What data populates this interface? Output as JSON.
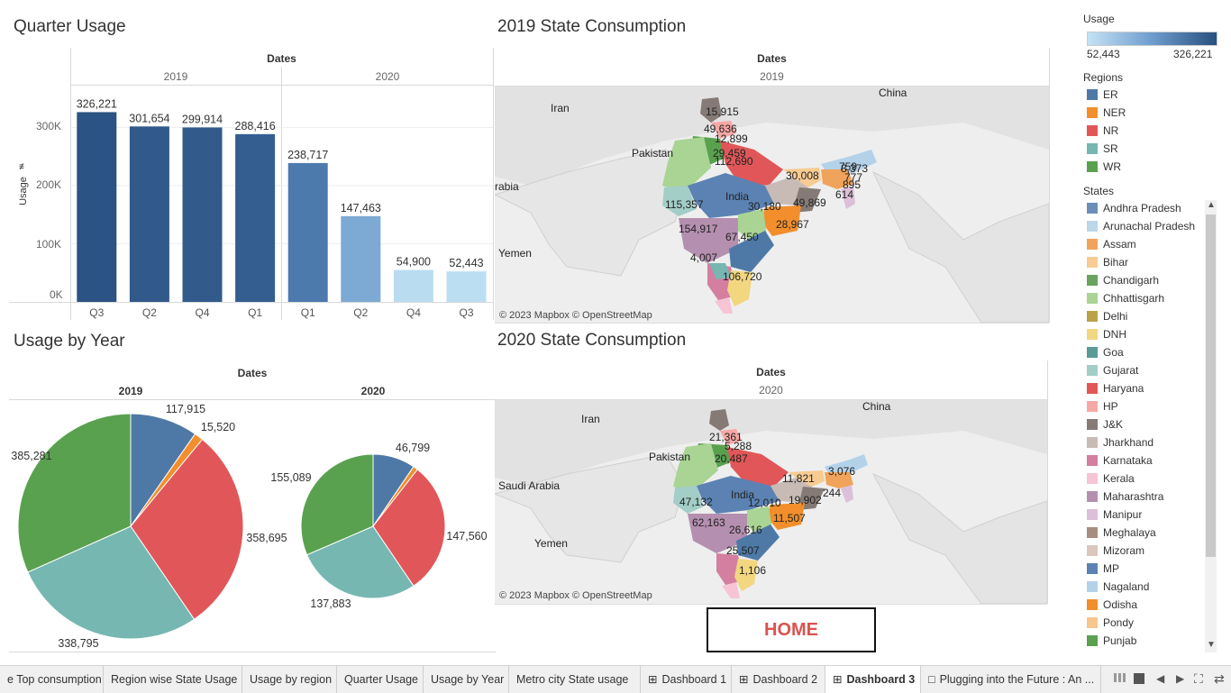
{
  "quarter_usage": {
    "title": "Quarter Usage",
    "header": "Dates",
    "years": [
      "2019",
      "2020"
    ],
    "ylabel": "Usage",
    "yticks": [
      "300K",
      "200K",
      "100K",
      "0K"
    ],
    "chart_data": {
      "type": "bar",
      "categories": [
        "2019 Q3",
        "2019 Q2",
        "2019 Q4",
        "2019 Q1",
        "2020 Q1",
        "2020 Q2",
        "2020 Q4",
        "2020 Q3"
      ],
      "quarter_labels": [
        "Q3",
        "Q2",
        "Q4",
        "Q1",
        "Q1",
        "Q2",
        "Q4",
        "Q3"
      ],
      "values": [
        326221,
        301654,
        299914,
        288416,
        238717,
        147463,
        54900,
        52443
      ],
      "value_labels": [
        "326,221",
        "301,654",
        "299,914",
        "288,416",
        "238,717",
        "147,463",
        "54,900",
        "52,443"
      ],
      "ylim": [
        0,
        330000
      ],
      "colors": [
        "#2b5383",
        "#31598a",
        "#325b8c",
        "#345e90",
        "#4d7aad",
        "#7daad5",
        "#b9dcf1",
        "#bcdef2"
      ]
    }
  },
  "usage_by_year": {
    "title": "Usage by Year",
    "header": "Dates",
    "chart_data": [
      {
        "type": "pie",
        "year": "2019",
        "slices": [
          {
            "region": "ER",
            "value": 117915,
            "label": "117,915",
            "color": "#4e79a7"
          },
          {
            "region": "NER",
            "value": 15520,
            "label": "15,520",
            "color": "#f28e2b"
          },
          {
            "region": "NR",
            "value": 358695,
            "label": "358,695",
            "color": "#e15759"
          },
          {
            "region": "SR",
            "value": 338795,
            "label": "338,795",
            "color": "#76b7b2"
          },
          {
            "region": "WR",
            "value": 385281,
            "label": "385,281",
            "color": "#59a14f"
          }
        ]
      },
      {
        "type": "pie",
        "year": "2020",
        "slices": [
          {
            "region": "ER",
            "value": 46799,
            "label": "46,799",
            "color": "#4e79a7"
          },
          {
            "region": "NER",
            "value": 5200,
            "label": "",
            "color": "#f28e2b"
          },
          {
            "region": "NR",
            "value": 147560,
            "label": "147,560",
            "color": "#e15759"
          },
          {
            "region": "SR",
            "value": 137883,
            "label": "137,883",
            "color": "#76b7b2"
          },
          {
            "region": "WR",
            "value": 155089,
            "label": "155,089",
            "color": "#59a14f"
          }
        ]
      }
    ]
  },
  "map2019": {
    "title": "2019 State Consumption",
    "header": "Dates",
    "year": "2019",
    "attribution": "© 2023 Mapbox © OpenStreetMap",
    "place_names": [
      "Iran",
      "China",
      "Pakistan",
      "India",
      "Yemen",
      "rabia"
    ],
    "labels": [
      "15,915",
      "49,636",
      "12,899",
      "29,459",
      "112,690",
      "30,008",
      "8,373",
      "777",
      "895",
      "614",
      "759",
      "115,357",
      "30,180",
      "49,869",
      "28,967",
      "154,917",
      "67,450",
      "4,007",
      "106,720"
    ]
  },
  "map2020": {
    "title": "2020 State Consumption",
    "header": "Dates",
    "year": "2020",
    "attribution": "© 2023 Mapbox © OpenStreetMap",
    "place_names": [
      "Iran",
      "China",
      "Pakistan",
      "India",
      "Saudi Arabia",
      "Yemen"
    ],
    "labels": [
      "21,361",
      "5,288",
      "20,487",
      "11,821",
      "3,076",
      "244",
      "12,010",
      "19,902",
      "47,132",
      "11,507",
      "62,163",
      "26,616",
      "25,507",
      "1,106"
    ]
  },
  "legend": {
    "usage_title": "Usage",
    "usage_min": "52,443",
    "usage_max": "326,221",
    "regions_title": "Regions",
    "regions": [
      {
        "name": "ER",
        "color": "#4e79a7"
      },
      {
        "name": "NER",
        "color": "#f28e2b"
      },
      {
        "name": "NR",
        "color": "#e15759"
      },
      {
        "name": "SR",
        "color": "#76b7b2"
      },
      {
        "name": "WR",
        "color": "#59a14f"
      }
    ],
    "states_title": "States",
    "states": [
      {
        "name": "Andhra Pradesh",
        "color": "#6b8fb8"
      },
      {
        "name": "Arunachal Pradesh",
        "color": "#bcd6ea"
      },
      {
        "name": "Assam",
        "color": "#f0a35a"
      },
      {
        "name": "Bihar",
        "color": "#f7cb92"
      },
      {
        "name": "Chandigarh",
        "color": "#6aa35e"
      },
      {
        "name": "Chhattisgarh",
        "color": "#a9d494"
      },
      {
        "name": "Delhi",
        "color": "#b9a24a"
      },
      {
        "name": "DNH",
        "color": "#f2d680"
      },
      {
        "name": "Goa",
        "color": "#5a9a96"
      },
      {
        "name": "Gujarat",
        "color": "#a3cdc7"
      },
      {
        "name": "Haryana",
        "color": "#e15759"
      },
      {
        "name": "HP",
        "color": "#f7a8a6"
      },
      {
        "name": "J&K",
        "color": "#857a75"
      },
      {
        "name": "Jharkhand",
        "color": "#c8bbb5"
      },
      {
        "name": "Karnataka",
        "color": "#d47ea0"
      },
      {
        "name": "Kerala",
        "color": "#f6c4d5"
      },
      {
        "name": "Maharashtra",
        "color": "#b58fb0"
      },
      {
        "name": "Manipur",
        "color": "#dcbfd9"
      },
      {
        "name": "Meghalaya",
        "color": "#a78e80"
      },
      {
        "name": "Mizoram",
        "color": "#dcc6bd"
      },
      {
        "name": "MP",
        "color": "#5b82b3"
      },
      {
        "name": "Nagaland",
        "color": "#b3d2ea"
      },
      {
        "name": "Odisha",
        "color": "#f28e2b"
      },
      {
        "name": "Pondy",
        "color": "#f8c58c"
      },
      {
        "name": "Punjab",
        "color": "#59a14f"
      }
    ]
  },
  "home_button": "HOME",
  "tabs": [
    "e Top consumption",
    "Region wise State Usage",
    "Usage by region",
    "Quarter Usage",
    "Usage by Year",
    "Metro city State usage",
    "Dashboard 1",
    "Dashboard 2",
    "Dashboard 3",
    "Plugging into the Future : An ..."
  ],
  "active_tab": "Dashboard 3"
}
